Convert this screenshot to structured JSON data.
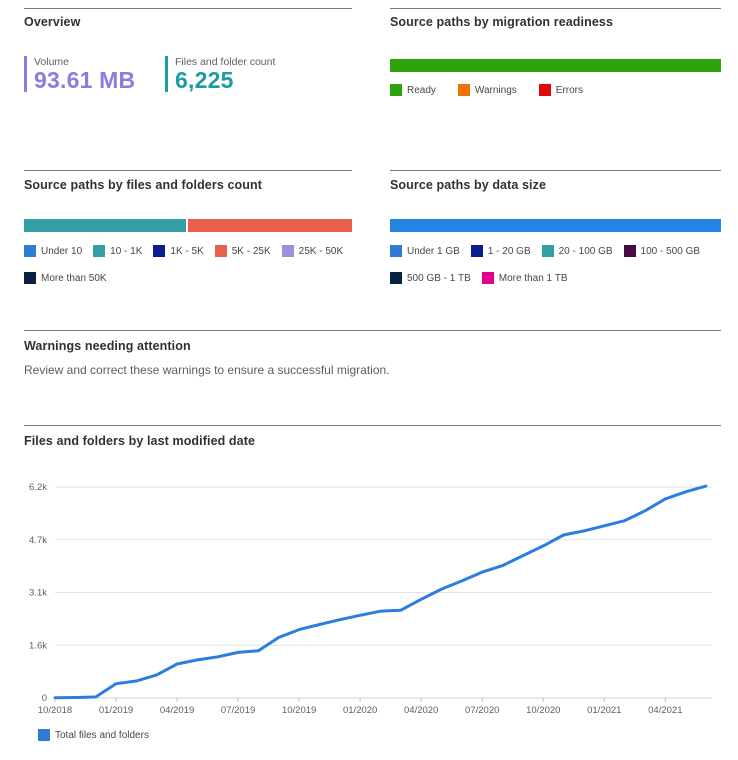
{
  "overview": {
    "title": "Overview",
    "metrics": [
      {
        "label": "Volume",
        "value": "93.61 MB",
        "color": "#8b7cdf"
      },
      {
        "label": "Files and folder count",
        "value": "6,225",
        "color": "#1b9ca1"
      }
    ]
  },
  "readiness": {
    "title": "Source paths by migration readiness",
    "bar_segments": [
      {
        "label": "Ready",
        "color": "#2fa30b",
        "fraction": 1
      }
    ],
    "legend": [
      {
        "label": "Ready",
        "color": "#2fa30b"
      },
      {
        "label": "Warnings",
        "color": "#ee730b"
      },
      {
        "label": "Errors",
        "color": "#e00b0c"
      }
    ]
  },
  "files_count": {
    "title": "Source paths by files and folders count",
    "bar_segments": [
      {
        "label": "10 - 1K",
        "color": "#339fa4",
        "fraction": 0.497
      },
      {
        "label": "5K - 25K",
        "color": "#e8604c",
        "fraction": 0.503
      }
    ],
    "legend": [
      {
        "label": "Under 10",
        "color": "#2e7cd6"
      },
      {
        "label": "10 - 1K",
        "color": "#339fa4"
      },
      {
        "label": "1K - 5K",
        "color": "#0a1e8f"
      },
      {
        "label": "5K - 25K",
        "color": "#e8604c"
      },
      {
        "label": "25K - 50K",
        "color": "#9e8fe0"
      },
      {
        "label": "More than 50K",
        "color": "#0a2140"
      }
    ]
  },
  "data_size": {
    "title": "Source paths by data size",
    "bar_segments": [
      {
        "label": "Under 1 GB",
        "color": "#2484e4",
        "fraction": 1
      }
    ],
    "legend": [
      {
        "label": "Under 1 GB",
        "color": "#2e7cd6"
      },
      {
        "label": "1 - 20 GB",
        "color": "#0a1e8f"
      },
      {
        "label": "20 - 100 GB",
        "color": "#339fa4"
      },
      {
        "label": "100 - 500 GB",
        "color": "#470b42"
      },
      {
        "label": "500 GB - 1 TB",
        "color": "#0a2140"
      },
      {
        "label": "More than 1 TB",
        "color": "#e3008c"
      }
    ]
  },
  "warnings": {
    "title": "Warnings needing attention",
    "description": "Review and correct these warnings to ensure a successful migration."
  },
  "chart_data": {
    "type": "line",
    "title": "Files and folders by last modified date",
    "x": [
      "10/2018",
      "11/2018",
      "12/2018",
      "01/2019",
      "02/2019",
      "03/2019",
      "04/2019",
      "05/2019",
      "06/2019",
      "07/2019",
      "08/2019",
      "09/2019",
      "10/2019",
      "11/2019",
      "12/2019",
      "01/2020",
      "02/2020",
      "03/2020",
      "04/2020",
      "05/2020",
      "06/2020",
      "07/2020",
      "08/2020",
      "09/2020",
      "10/2020",
      "11/2020",
      "12/2020",
      "01/2021",
      "02/2021",
      "03/2021",
      "04/2021",
      "05/2021",
      "06/2021"
    ],
    "series": [
      {
        "name": "Total files and folders",
        "color": "#2b7de1",
        "values": [
          10,
          15,
          30,
          420,
          500,
          680,
          1000,
          1120,
          1210,
          1340,
          1390,
          1780,
          2010,
          2160,
          2300,
          2430,
          2550,
          2580,
          2900,
          3200,
          3440,
          3700,
          3890,
          4180,
          4470,
          4790,
          4910,
          5060,
          5210,
          5500,
          5850,
          6060,
          6225
        ]
      }
    ],
    "y_ticks": [
      {
        "value": 0,
        "label": "0"
      },
      {
        "value": 1550,
        "label": "1.6k"
      },
      {
        "value": 3100,
        "label": "3.1k"
      },
      {
        "value": 4650,
        "label": "4.7k"
      },
      {
        "value": 6200,
        "label": "6.2k"
      }
    ],
    "ylim": [
      0,
      6200
    ],
    "x_tick_every": 3,
    "grid": true,
    "legend_position": "bottom",
    "grid_color": "#e2e2e2",
    "tick_color": "#c8c6c4",
    "axis_label_color": "#605e5c"
  }
}
